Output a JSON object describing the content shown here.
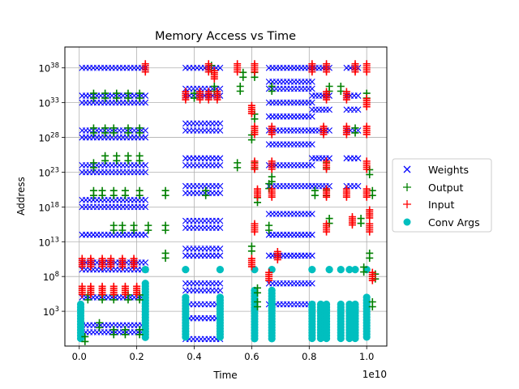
{
  "chart_data": {
    "type": "scatter",
    "title": "Memory Access vs Time",
    "xlabel": "Time",
    "ylabel": "Address",
    "x_offset_label": "1e10",
    "xlim": [
      -0.05,
      1.07
    ],
    "ylim_log10": [
      -2,
      41
    ],
    "x_ticks": [
      0.0,
      0.2,
      0.4,
      0.6,
      0.8,
      1.0
    ],
    "x_tick_labels": [
      "0.0",
      "0.2",
      "0.4",
      "0.6",
      "0.8",
      "1.0"
    ],
    "y_ticks_log10": [
      3,
      8,
      13,
      18,
      23,
      28,
      33,
      38
    ],
    "y_tick_labels": [
      {
        "base": "10",
        "exp": "3"
      },
      {
        "base": "10",
        "exp": "8"
      },
      {
        "base": "10",
        "exp": "13"
      },
      {
        "base": "10",
        "exp": "18"
      },
      {
        "base": "10",
        "exp": "23"
      },
      {
        "base": "10",
        "exp": "28"
      },
      {
        "base": "10",
        "exp": "33"
      },
      {
        "base": "10",
        "exp": "38"
      }
    ],
    "y_scale": "log",
    "grid": true,
    "legend_position": "right, outside plot",
    "series": [
      {
        "name": "Weights",
        "marker": "x",
        "color": "#0000ff"
      },
      {
        "name": "Output",
        "marker": "+",
        "color": "#008000"
      },
      {
        "name": "Input",
        "marker": "+",
        "color": "#ff0000"
      },
      {
        "name": "Conv Args",
        "marker": "o",
        "color": "#00bfbf"
      }
    ],
    "weights_bands": [
      {
        "x0": 0.01,
        "x1": 0.23,
        "levels": [
          0,
          1,
          5,
          9,
          10,
          14,
          18,
          19,
          23,
          24,
          28,
          29,
          33,
          34,
          38
        ]
      },
      {
        "x0": 0.37,
        "x1": 0.49,
        "levels": [
          -1,
          2,
          4,
          6,
          7,
          11,
          12,
          15,
          16,
          20,
          21,
          24,
          25,
          29,
          30,
          34,
          35,
          38
        ]
      },
      {
        "x0": 0.66,
        "x1": 0.81,
        "levels": [
          4,
          7,
          11,
          14,
          17,
          21,
          24,
          27,
          29,
          31,
          33,
          35,
          36,
          38
        ]
      },
      {
        "x0": 0.81,
        "x1": 0.87,
        "levels": [
          21,
          25,
          29,
          32,
          34,
          38
        ]
      },
      {
        "x0": 0.93,
        "x1": 0.97,
        "levels": [
          21,
          25,
          29,
          32,
          34,
          38
        ]
      }
    ],
    "output_points": [
      {
        "x": 0.02,
        "y": -1
      },
      {
        "x": 0.07,
        "y": 1
      },
      {
        "x": 0.12,
        "y": 0
      },
      {
        "x": 0.16,
        "y": 0
      },
      {
        "x": 0.21,
        "y": 0
      },
      {
        "x": 0.03,
        "y": 5
      },
      {
        "x": 0.08,
        "y": 5
      },
      {
        "x": 0.12,
        "y": 5
      },
      {
        "x": 0.17,
        "y": 5
      },
      {
        "x": 0.21,
        "y": 5
      },
      {
        "x": 0.12,
        "y": 15
      },
      {
        "x": 0.15,
        "y": 15
      },
      {
        "x": 0.19,
        "y": 15
      },
      {
        "x": 0.24,
        "y": 15
      },
      {
        "x": 0.3,
        "y": 15
      },
      {
        "x": 0.05,
        "y": 20
      },
      {
        "x": 0.08,
        "y": 20
      },
      {
        "x": 0.12,
        "y": 20
      },
      {
        "x": 0.16,
        "y": 20
      },
      {
        "x": 0.21,
        "y": 20
      },
      {
        "x": 0.3,
        "y": 20
      },
      {
        "x": 0.05,
        "y": 24
      },
      {
        "x": 0.09,
        "y": 25
      },
      {
        "x": 0.13,
        "y": 25
      },
      {
        "x": 0.17,
        "y": 25
      },
      {
        "x": 0.21,
        "y": 25
      },
      {
        "x": 0.05,
        "y": 29
      },
      {
        "x": 0.09,
        "y": 29
      },
      {
        "x": 0.12,
        "y": 29
      },
      {
        "x": 0.17,
        "y": 29
      },
      {
        "x": 0.21,
        "y": 29
      },
      {
        "x": 0.05,
        "y": 34
      },
      {
        "x": 0.09,
        "y": 34
      },
      {
        "x": 0.13,
        "y": 34
      },
      {
        "x": 0.17,
        "y": 34
      },
      {
        "x": 0.21,
        "y": 34
      },
      {
        "x": 0.3,
        "y": 11
      },
      {
        "x": 0.44,
        "y": 20
      },
      {
        "x": 0.4,
        "y": 34
      },
      {
        "x": 0.47,
        "y": 35
      },
      {
        "x": 0.46,
        "y": 38
      },
      {
        "x": 0.55,
        "y": 24
      },
      {
        "x": 0.56,
        "y": 35
      },
      {
        "x": 0.57,
        "y": 37
      },
      {
        "x": 0.61,
        "y": 37
      },
      {
        "x": 0.61,
        "y": 31
      },
      {
        "x": 0.6,
        "y": 28
      },
      {
        "x": 0.61,
        "y": 24
      },
      {
        "x": 0.62,
        "y": 19
      },
      {
        "x": 0.6,
        "y": 12
      },
      {
        "x": 0.62,
        "y": 6
      },
      {
        "x": 0.62,
        "y": 4
      },
      {
        "x": 0.67,
        "y": 35
      },
      {
        "x": 0.67,
        "y": 22
      },
      {
        "x": 0.66,
        "y": 21
      },
      {
        "x": 0.66,
        "y": 15
      },
      {
        "x": 0.82,
        "y": 20
      },
      {
        "x": 0.86,
        "y": 20
      },
      {
        "x": 0.87,
        "y": 16
      },
      {
        "x": 0.87,
        "y": 35
      },
      {
        "x": 0.86,
        "y": 24
      },
      {
        "x": 0.91,
        "y": 35
      },
      {
        "x": 0.96,
        "y": 29
      },
      {
        "x": 1.0,
        "y": 34
      },
      {
        "x": 1.01,
        "y": 23
      },
      {
        "x": 1.02,
        "y": 20
      },
      {
        "x": 1.01,
        "y": 11
      },
      {
        "x": 1.03,
        "y": 8
      },
      {
        "x": 1.02,
        "y": 4
      },
      {
        "x": 0.98,
        "y": 16
      },
      {
        "x": 0.99,
        "y": 9
      }
    ],
    "input_points": [
      {
        "x": 0.01,
        "y": 10
      },
      {
        "x": 0.04,
        "y": 10
      },
      {
        "x": 0.08,
        "y": 10
      },
      {
        "x": 0.11,
        "y": 10
      },
      {
        "x": 0.15,
        "y": 10
      },
      {
        "x": 0.19,
        "y": 10
      },
      {
        "x": 0.01,
        "y": 6
      },
      {
        "x": 0.04,
        "y": 6
      },
      {
        "x": 0.08,
        "y": 6
      },
      {
        "x": 0.12,
        "y": 6
      },
      {
        "x": 0.16,
        "y": 6
      },
      {
        "x": 0.2,
        "y": 6
      },
      {
        "x": 0.23,
        "y": 38
      },
      {
        "x": 0.37,
        "y": 34
      },
      {
        "x": 0.42,
        "y": 34
      },
      {
        "x": 0.45,
        "y": 34
      },
      {
        "x": 0.48,
        "y": 34
      },
      {
        "x": 0.45,
        "y": 38
      },
      {
        "x": 0.47,
        "y": 37
      },
      {
        "x": 0.55,
        "y": 38
      },
      {
        "x": 0.61,
        "y": 38
      },
      {
        "x": 0.6,
        "y": 32
      },
      {
        "x": 0.61,
        "y": 29
      },
      {
        "x": 0.61,
        "y": 24
      },
      {
        "x": 0.62,
        "y": 20
      },
      {
        "x": 0.61,
        "y": 15
      },
      {
        "x": 0.6,
        "y": 10
      },
      {
        "x": 0.67,
        "y": 29
      },
      {
        "x": 0.67,
        "y": 20
      },
      {
        "x": 0.67,
        "y": 24
      },
      {
        "x": 0.81,
        "y": 38
      },
      {
        "x": 0.86,
        "y": 38
      },
      {
        "x": 0.86,
        "y": 34
      },
      {
        "x": 0.85,
        "y": 29
      },
      {
        "x": 0.86,
        "y": 24
      },
      {
        "x": 0.86,
        "y": 20
      },
      {
        "x": 0.86,
        "y": 15
      },
      {
        "x": 0.96,
        "y": 38
      },
      {
        "x": 0.93,
        "y": 34
      },
      {
        "x": 0.93,
        "y": 29
      },
      {
        "x": 0.93,
        "y": 20
      },
      {
        "x": 0.95,
        "y": 16
      },
      {
        "x": 1.0,
        "y": 38
      },
      {
        "x": 1.0,
        "y": 33
      },
      {
        "x": 1.0,
        "y": 29
      },
      {
        "x": 1.0,
        "y": 24
      },
      {
        "x": 1.0,
        "y": 20
      },
      {
        "x": 1.01,
        "y": 17
      },
      {
        "x": 1.01,
        "y": 15
      },
      {
        "x": 1.02,
        "y": 8
      },
      {
        "x": 0.69,
        "y": 11
      },
      {
        "x": 0.66,
        "y": 8
      }
    ],
    "convargs_columns": [
      {
        "x": 0.005,
        "y0": -1,
        "y1": 4
      },
      {
        "x": 0.23,
        "y0": -1,
        "y1": 7
      },
      {
        "x": 0.37,
        "y0": -1,
        "y1": 5
      },
      {
        "x": 0.49,
        "y0": -1,
        "y1": 5
      },
      {
        "x": 0.61,
        "y0": -1,
        "y1": 6
      },
      {
        "x": 0.67,
        "y0": -1,
        "y1": 6
      },
      {
        "x": 0.81,
        "y0": -1,
        "y1": 4
      },
      {
        "x": 0.84,
        "y0": -1,
        "y1": 4
      },
      {
        "x": 0.86,
        "y0": -1,
        "y1": 4
      },
      {
        "x": 0.91,
        "y0": -1,
        "y1": 4
      },
      {
        "x": 0.94,
        "y0": -1,
        "y1": 4
      },
      {
        "x": 0.96,
        "y0": -1,
        "y1": 4
      },
      {
        "x": 1.0,
        "y0": -1,
        "y1": 5
      }
    ],
    "convargs_points": [
      {
        "x": 0.23,
        "y": 9
      },
      {
        "x": 0.37,
        "y": 9
      },
      {
        "x": 0.49,
        "y": 9
      },
      {
        "x": 0.61,
        "y": 9
      },
      {
        "x": 0.67,
        "y": 9
      },
      {
        "x": 0.81,
        "y": 9
      },
      {
        "x": 0.87,
        "y": 9
      },
      {
        "x": 0.91,
        "y": 9
      },
      {
        "x": 0.94,
        "y": 9
      },
      {
        "x": 0.96,
        "y": 9
      },
      {
        "x": 1.0,
        "y": 9
      }
    ]
  }
}
